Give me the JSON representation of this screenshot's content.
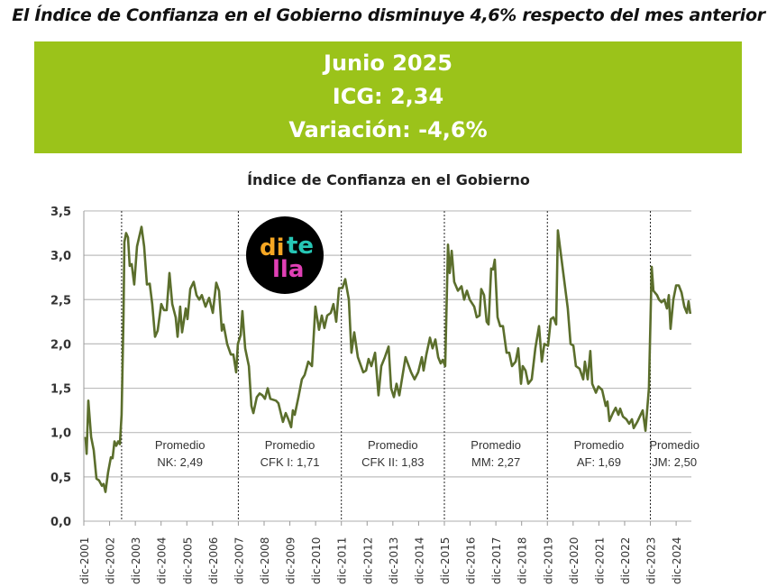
{
  "headline": "El Índice de Confianza en el Gobierno disminuye 4,6% respecto del mes anterior",
  "banner": {
    "line1": "Junio 2025",
    "line2": "ICG: 2,34",
    "line3": "Variación: -4,6%",
    "color": "#9bc31a"
  },
  "logo": {
    "text_top_a": "di",
    "text_top_b": "te",
    "text_bottom": "lla"
  },
  "chart_data": {
    "type": "line",
    "title": "Índice de Confianza en el Gobierno",
    "xlabel": "",
    "ylabel": "",
    "x_unit": "months since dic-2001",
    "ylim": [
      0,
      3.5
    ],
    "yticks": [
      "0,0",
      "0,5",
      "1,0",
      "1,5",
      "2,0",
      "2,5",
      "3,0",
      "3,5"
    ],
    "xticks": [
      "dic-2001",
      "dic-2002",
      "dic-2003",
      "dic-2004",
      "dic-2005",
      "dic-2006",
      "dic-2007",
      "dic-2008",
      "dic-2009",
      "dic-2010",
      "dic-2011",
      "dic-2012",
      "dic-2013",
      "dic-2014",
      "dic-2015",
      "dic-2016",
      "dic-2017",
      "dic-2018",
      "dic-2019",
      "dic-2020",
      "dic-2021",
      "dic-2022",
      "dic-2023",
      "dic-2024"
    ],
    "grid": true,
    "line_color": "#5b6e2c",
    "periods": [
      {
        "start": 17.6,
        "end": 72,
        "label1": "Promedio",
        "label2": "NK: 2,49"
      },
      {
        "start": 72,
        "end": 120,
        "label1": "Promedio",
        "label2": "CFK I: 1,71"
      },
      {
        "start": 120,
        "end": 168,
        "label1": "Promedio",
        "label2": "CFK II: 1,83"
      },
      {
        "start": 168,
        "end": 216,
        "label1": "Promedio",
        "label2": "MM: 2,27"
      },
      {
        "start": 216,
        "end": 264,
        "label1": "Promedio",
        "label2": "AF: 1,69"
      },
      {
        "start": 264,
        "end": 283,
        "label1": "Promedio",
        "label2": "JM: 2,50"
      }
    ],
    "series": [
      {
        "name": "ICG",
        "points": [
          [
            0.8,
            0.95
          ],
          [
            1.3,
            0.76
          ],
          [
            2.1,
            1.36
          ],
          [
            3.4,
            0.95
          ],
          [
            4.6,
            0.8
          ],
          [
            5.9,
            0.48
          ],
          [
            7.1,
            0.46
          ],
          [
            8.4,
            0.4
          ],
          [
            9.2,
            0.42
          ],
          [
            10.1,
            0.33
          ],
          [
            11.3,
            0.55
          ],
          [
            12.6,
            0.72
          ],
          [
            13.4,
            0.71
          ],
          [
            14.3,
            0.9
          ],
          [
            15.1,
            0.85
          ],
          [
            16,
            0.9
          ],
          [
            16.8,
            0.87
          ],
          [
            17.6,
            1.2
          ],
          [
            18.5,
            2.3
          ],
          [
            18.9,
            3.15
          ],
          [
            19.7,
            3.25
          ],
          [
            20.6,
            3.2
          ],
          [
            21.4,
            2.88
          ],
          [
            22.3,
            2.9
          ],
          [
            23.5,
            2.67
          ],
          [
            24.8,
            3.1
          ],
          [
            26.9,
            3.32
          ],
          [
            28.1,
            3.1
          ],
          [
            29.4,
            2.67
          ],
          [
            30.7,
            2.68
          ],
          [
            31.9,
            2.45
          ],
          [
            33.2,
            2.08
          ],
          [
            34.4,
            2.15
          ],
          [
            36.1,
            2.45
          ],
          [
            37.4,
            2.38
          ],
          [
            38.6,
            2.38
          ],
          [
            39.9,
            2.8
          ],
          [
            41.2,
            2.45
          ],
          [
            42.8,
            2.3
          ],
          [
            43.7,
            2.08
          ],
          [
            44.9,
            2.42
          ],
          [
            45.8,
            2.13
          ],
          [
            47.5,
            2.4
          ],
          [
            48.3,
            2.28
          ],
          [
            49.6,
            2.62
          ],
          [
            51.2,
            2.7
          ],
          [
            52.5,
            2.55
          ],
          [
            53.8,
            2.5
          ],
          [
            55,
            2.55
          ],
          [
            56.7,
            2.42
          ],
          [
            58.4,
            2.52
          ],
          [
            60.1,
            2.35
          ],
          [
            61.7,
            2.69
          ],
          [
            63,
            2.6
          ],
          [
            64.3,
            2.15
          ],
          [
            65.1,
            2.22
          ],
          [
            66.8,
            2.0
          ],
          [
            68.5,
            1.88
          ],
          [
            69.7,
            1.88
          ],
          [
            71,
            1.68
          ],
          [
            71.8,
            2.0
          ],
          [
            73.1,
            2.1
          ],
          [
            73.9,
            2.37
          ],
          [
            75.2,
            1.95
          ],
          [
            76.9,
            1.75
          ],
          [
            78.1,
            1.3
          ],
          [
            79,
            1.22
          ],
          [
            80.6,
            1.4
          ],
          [
            81.9,
            1.44
          ],
          [
            83.2,
            1.42
          ],
          [
            84.4,
            1.38
          ],
          [
            85.7,
            1.5
          ],
          [
            86.9,
            1.38
          ],
          [
            89.5,
            1.36
          ],
          [
            90.7,
            1.33
          ],
          [
            92.8,
            1.12
          ],
          [
            94.1,
            1.22
          ],
          [
            95.3,
            1.15
          ],
          [
            96.6,
            1.06
          ],
          [
            97.4,
            1.25
          ],
          [
            98.3,
            1.2
          ],
          [
            100,
            1.4
          ],
          [
            101.6,
            1.6
          ],
          [
            102.9,
            1.65
          ],
          [
            104.6,
            1.8
          ],
          [
            106.3,
            1.75
          ],
          [
            107.9,
            2.42
          ],
          [
            109.6,
            2.16
          ],
          [
            110.9,
            2.32
          ],
          [
            112.1,
            2.18
          ],
          [
            113.4,
            2.32
          ],
          [
            115.1,
            2.35
          ],
          [
            116.3,
            2.45
          ],
          [
            117.6,
            2.25
          ],
          [
            118.9,
            2.63
          ],
          [
            120.5,
            2.63
          ],
          [
            121.8,
            2.73
          ],
          [
            123.5,
            2.5
          ],
          [
            124.7,
            1.9
          ],
          [
            126,
            2.13
          ],
          [
            127.7,
            1.85
          ],
          [
            130.2,
            1.68
          ],
          [
            131.5,
            1.7
          ],
          [
            132.7,
            1.83
          ],
          [
            134,
            1.75
          ],
          [
            135.7,
            1.9
          ],
          [
            137.3,
            1.42
          ],
          [
            138.6,
            1.75
          ],
          [
            140.3,
            1.85
          ],
          [
            142,
            1.97
          ],
          [
            143.2,
            1.5
          ],
          [
            144.5,
            1.4
          ],
          [
            145.7,
            1.55
          ],
          [
            147,
            1.42
          ],
          [
            149.9,
            1.85
          ],
          [
            152.5,
            1.68
          ],
          [
            154.1,
            1.6
          ],
          [
            155.8,
            1.68
          ],
          [
            157.5,
            1.85
          ],
          [
            158.3,
            1.7
          ],
          [
            159.6,
            1.88
          ],
          [
            161.3,
            2.07
          ],
          [
            162.5,
            1.95
          ],
          [
            163.8,
            2.05
          ],
          [
            165.1,
            1.85
          ],
          [
            166.3,
            1.78
          ],
          [
            167.2,
            1.82
          ],
          [
            168.4,
            1.75
          ],
          [
            169.7,
            3.12
          ],
          [
            170.5,
            2.8
          ],
          [
            171.4,
            3.05
          ],
          [
            172.6,
            2.7
          ],
          [
            174.3,
            2.6
          ],
          [
            176,
            2.65
          ],
          [
            177.2,
            2.5
          ],
          [
            178.5,
            2.6
          ],
          [
            179.8,
            2.5
          ],
          [
            181.9,
            2.42
          ],
          [
            183.1,
            2.3
          ],
          [
            184.4,
            2.32
          ],
          [
            185.2,
            2.62
          ],
          [
            186.5,
            2.55
          ],
          [
            187.7,
            2.25
          ],
          [
            188.6,
            2.22
          ],
          [
            189.8,
            2.85
          ],
          [
            190.7,
            2.84
          ],
          [
            191.5,
            2.95
          ],
          [
            192.8,
            2.3
          ],
          [
            194,
            2.2
          ],
          [
            195.3,
            2.2
          ],
          [
            197,
            1.9
          ],
          [
            198.2,
            1.9
          ],
          [
            199.5,
            1.75
          ],
          [
            201.2,
            1.8
          ],
          [
            202.4,
            1.95
          ],
          [
            203.7,
            1.55
          ],
          [
            204.5,
            1.75
          ],
          [
            205.8,
            1.7
          ],
          [
            207.1,
            1.55
          ],
          [
            208.7,
            1.6
          ],
          [
            210.4,
            1.95
          ],
          [
            212.1,
            2.2
          ],
          [
            213.4,
            1.8
          ],
          [
            214.6,
            2.0
          ],
          [
            216.3,
            1.98
          ],
          [
            217.6,
            2.28
          ],
          [
            218.8,
            2.3
          ],
          [
            220.1,
            2.22
          ],
          [
            220.9,
            3.28
          ],
          [
            223.4,
            2.8
          ],
          [
            225.5,
            2.4
          ],
          [
            226.8,
            2.0
          ],
          [
            228.1,
            1.98
          ],
          [
            229.3,
            1.75
          ],
          [
            231,
            1.72
          ],
          [
            232.7,
            1.6
          ],
          [
            233.5,
            1.8
          ],
          [
            234.8,
            1.6
          ],
          [
            236,
            1.92
          ],
          [
            236.9,
            1.55
          ],
          [
            238.6,
            1.45
          ],
          [
            239.8,
            1.52
          ],
          [
            241.5,
            1.48
          ],
          [
            243.2,
            1.3
          ],
          [
            244,
            1.35
          ],
          [
            244.9,
            1.13
          ],
          [
            246.5,
            1.22
          ],
          [
            247.8,
            1.28
          ],
          [
            249.1,
            1.2
          ],
          [
            249.9,
            1.27
          ],
          [
            251.2,
            1.18
          ],
          [
            252.8,
            1.15
          ],
          [
            254.1,
            1.1
          ],
          [
            255.4,
            1.15
          ],
          [
            256.2,
            1.05
          ],
          [
            257.9,
            1.12
          ],
          [
            260.4,
            1.25
          ],
          [
            261.7,
            1.02
          ],
          [
            263.3,
            1.5
          ],
          [
            264.6,
            2.87
          ],
          [
            265.4,
            2.6
          ],
          [
            267.1,
            2.55
          ],
          [
            268,
            2.5
          ],
          [
            269.2,
            2.47
          ],
          [
            270.5,
            2.5
          ],
          [
            271.7,
            2.4
          ],
          [
            272.6,
            2.55
          ],
          [
            273.4,
            2.17
          ],
          [
            274.7,
            2.5
          ],
          [
            276,
            2.66
          ],
          [
            277.2,
            2.66
          ],
          [
            278.5,
            2.58
          ],
          [
            279.8,
            2.42
          ],
          [
            281,
            2.35
          ],
          [
            281.8,
            2.48
          ],
          [
            282.6,
            2.34
          ]
        ]
      }
    ]
  }
}
